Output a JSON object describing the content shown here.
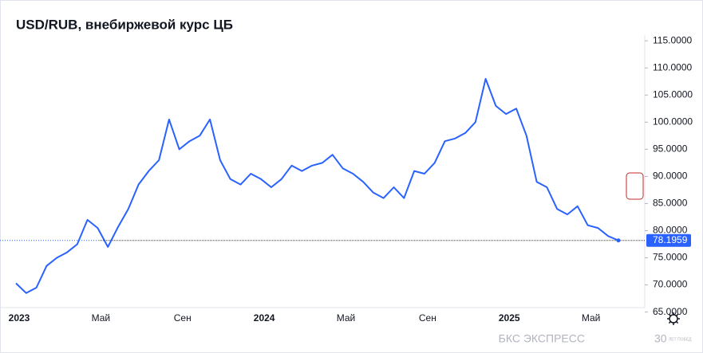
{
  "chart_data": {
    "type": "line",
    "title": "USD/RUB, внебиржевой курс ЦБ",
    "series": [
      {
        "name": "USD/RUB",
        "color": "#2962ff",
        "values": [
          70.3,
          68.5,
          69.5,
          73.5,
          75.0,
          76.0,
          77.5,
          82.0,
          80.5,
          77.0,
          80.7,
          84.0,
          88.5,
          91.0,
          93.0,
          100.5,
          95.0,
          96.5,
          97.5,
          100.5,
          93.0,
          89.5,
          88.5,
          90.5,
          89.5,
          88.0,
          89.5,
          92.0,
          91.0,
          92.0,
          92.5,
          94.0,
          91.5,
          90.5,
          89.0,
          87.0,
          86.0,
          88.0,
          86.0,
          91.0,
          90.5,
          92.5,
          96.5,
          97.0,
          98.0,
          100.0,
          108.0,
          103.0,
          101.5,
          102.5,
          97.5,
          89.0,
          88.0,
          84.0,
          83.0,
          84.5,
          81.0,
          80.5,
          79.0,
          78.1959
        ]
      }
    ],
    "xticks": [
      {
        "value": 0,
        "label": "2023"
      },
      {
        "value": 8,
        "label": "Май"
      },
      {
        "value": 16,
        "label": "Сен"
      },
      {
        "value": 24,
        "label": "2024"
      },
      {
        "value": 32,
        "label": "Май"
      },
      {
        "value": 40,
        "label": "Сен"
      },
      {
        "value": 48,
        "label": "2025"
      },
      {
        "value": 56,
        "label": "Май"
      }
    ],
    "xlim": [
      0,
      59
    ],
    "ylim": [
      64.5,
      116.5
    ],
    "yticks": [
      {
        "value": 65,
        "label": "65.0000"
      },
      {
        "value": 70,
        "label": "70.0000"
      },
      {
        "value": 75,
        "label": "75.0000"
      },
      {
        "value": 80,
        "label": "80.0000"
      },
      {
        "value": 85,
        "label": "85.0000"
      },
      {
        "value": 90,
        "label": "90.0000"
      },
      {
        "value": 95,
        "label": "95.0000"
      },
      {
        "value": 100,
        "label": "100.0000"
      },
      {
        "value": 105,
        "label": "105.0000"
      },
      {
        "value": 110,
        "label": "110.0000"
      },
      {
        "value": 115,
        "label": "115.0000"
      }
    ],
    "branding": {
      "name": "БКС ЭКСПРЕСС",
      "badge": "30",
      "badge_text": "ЛЕТ ПОБЕД"
    }
  }
}
